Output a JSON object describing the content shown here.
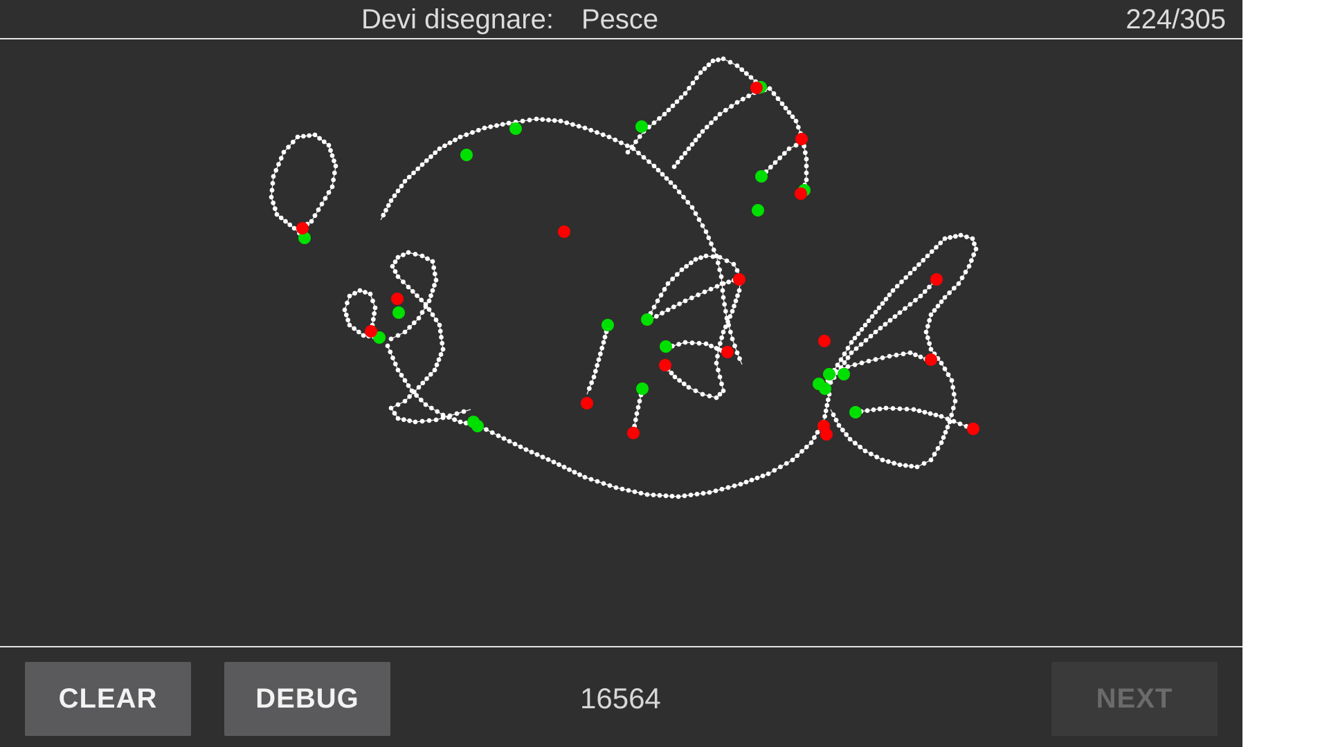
{
  "header": {
    "prompt_label": "Devi disegnare:",
    "prompt_word": "Pesce",
    "progress": "224/305"
  },
  "footer": {
    "clear_label": "CLEAR",
    "debug_label": "DEBUG",
    "score": "16564",
    "next_label": "NEXT",
    "next_enabled": false
  },
  "colors": {
    "background": "#2f2f2f",
    "stroke": "#ffffff",
    "stroke_start": "#00e000",
    "stroke_end": "#ff0000"
  },
  "drawing": {
    "subject": "fish",
    "stroke_count": 19
  }
}
